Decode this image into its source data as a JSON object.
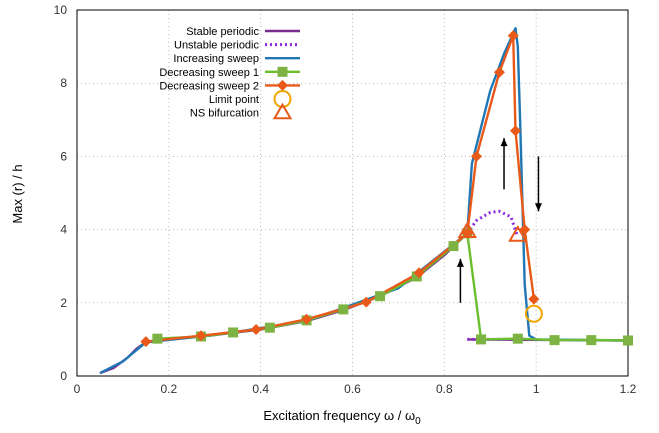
{
  "chart_data": {
    "type": "line",
    "title": "",
    "xlabel": "Excitation frequency ω / ω",
    "xlabel_sub": "0",
    "ylabel": "Max (r) / h",
    "xlim": [
      0,
      1.2
    ],
    "ylim": [
      0,
      10
    ],
    "x_ticks": [
      "0",
      "0.2",
      "0.4",
      "0.6",
      "0.8",
      "1",
      "1.2"
    ],
    "y_ticks": [
      "0",
      "2",
      "4",
      "6",
      "8",
      "10"
    ],
    "grid": true,
    "legend_position": "top-left",
    "series": [
      {
        "name": "Stable periodic",
        "color": "#7b2d8e",
        "style": "solid",
        "segments": [
          [
            [
              0.05,
              0.08
            ],
            [
              0.08,
              0.22
            ],
            [
              0.11,
              0.5
            ],
            [
              0.13,
              0.75
            ],
            [
              0.15,
              0.92
            ],
            [
              0.2,
              1.03
            ],
            [
              0.27,
              1.08
            ],
            [
              0.34,
              1.18
            ],
            [
              0.4,
              1.27
            ],
            [
              0.5,
              1.5
            ],
            [
              0.58,
              1.8
            ],
            [
              0.66,
              2.18
            ],
            [
              0.74,
              2.7
            ],
            [
              0.8,
              3.3
            ],
            [
              0.85,
              3.9
            ]
          ],
          [
            [
              0.85,
              1.0
            ],
            [
              1.2,
              0.97
            ]
          ]
        ]
      },
      {
        "name": "Unstable periodic",
        "color": "#8a2be2",
        "style": "dotted",
        "segments": [
          [
            [
              0.85,
              3.9
            ],
            [
              0.87,
              4.25
            ],
            [
              0.9,
              4.47
            ],
            [
              0.92,
              4.5
            ],
            [
              0.945,
              4.35
            ],
            [
              0.96,
              3.8
            ]
          ],
          [
            [
              0.85,
              1.0
            ],
            [
              0.88,
              1.0
            ],
            [
              0.95,
              1.0
            ],
            [
              0.98,
              1.0
            ]
          ]
        ]
      },
      {
        "name": "Increasing sweep",
        "color": "#1f77b4",
        "style": "solid",
        "segments": [
          [
            [
              0.05,
              0.08
            ],
            [
              0.1,
              0.4
            ],
            [
              0.15,
              0.92
            ],
            [
              0.3,
              1.12
            ],
            [
              0.5,
              1.5
            ],
            [
              0.7,
              2.4
            ],
            [
              0.85,
              3.9
            ],
            [
              0.86,
              5.8
            ],
            [
              0.88,
              6.8
            ],
            [
              0.9,
              7.8
            ],
            [
              0.93,
              8.8
            ],
            [
              0.955,
              9.5
            ],
            [
              0.96,
              9.0
            ],
            [
              0.965,
              7.0
            ],
            [
              0.975,
              2.5
            ],
            [
              0.985,
              1.1
            ],
            [
              1.0,
              1.0
            ],
            [
              1.2,
              0.97
            ]
          ]
        ]
      },
      {
        "name": "Decreasing sweep 1",
        "color": "#6bbf2e",
        "marker_color": "#7cb342",
        "style": "solid",
        "marker": "square",
        "points": [
          [
            1.2,
            0.97
          ],
          [
            1.12,
            0.98
          ],
          [
            1.04,
            0.98
          ],
          [
            0.96,
            1.02
          ],
          [
            0.88,
            1.0
          ],
          [
            0.85,
            3.9
          ],
          [
            0.82,
            3.55
          ],
          [
            0.74,
            2.72
          ],
          [
            0.66,
            2.18
          ],
          [
            0.58,
            1.82
          ],
          [
            0.5,
            1.52
          ],
          [
            0.42,
            1.32
          ],
          [
            0.34,
            1.19
          ],
          [
            0.27,
            1.08
          ],
          [
            0.175,
            1.02
          ]
        ]
      },
      {
        "name": "Decreasing sweep 2",
        "color": "#e8591a",
        "marker_color": "#e8591a",
        "style": "solid",
        "marker": "diamond",
        "points": [
          [
            0.995,
            2.1
          ],
          [
            0.975,
            4.0
          ],
          [
            0.955,
            6.7
          ],
          [
            0.95,
            9.3
          ],
          [
            0.92,
            8.3
          ],
          [
            0.87,
            6.0
          ],
          [
            0.85,
            3.9
          ],
          [
            0.745,
            2.82
          ],
          [
            0.63,
            2.02
          ],
          [
            0.5,
            1.55
          ],
          [
            0.39,
            1.27
          ],
          [
            0.27,
            1.1
          ],
          [
            0.15,
            0.94
          ]
        ]
      }
    ],
    "limit_point": {
      "name": "Limit point",
      "color": "#f0a500",
      "x": 0.995,
      "y": 1.7
    },
    "ns_bifurcation": {
      "name": "NS bifurcation",
      "color": "#e8591a",
      "points": [
        [
          0.85,
          3.95
        ],
        [
          0.96,
          3.85
        ]
      ]
    },
    "arrows": [
      {
        "from": [
          0.835,
          2.0
        ],
        "to": [
          0.835,
          3.2
        ]
      },
      {
        "from": [
          0.93,
          5.1
        ],
        "to": [
          0.93,
          6.5
        ]
      },
      {
        "from": [
          1.005,
          6.0
        ],
        "to": [
          1.005,
          4.5
        ]
      }
    ]
  }
}
